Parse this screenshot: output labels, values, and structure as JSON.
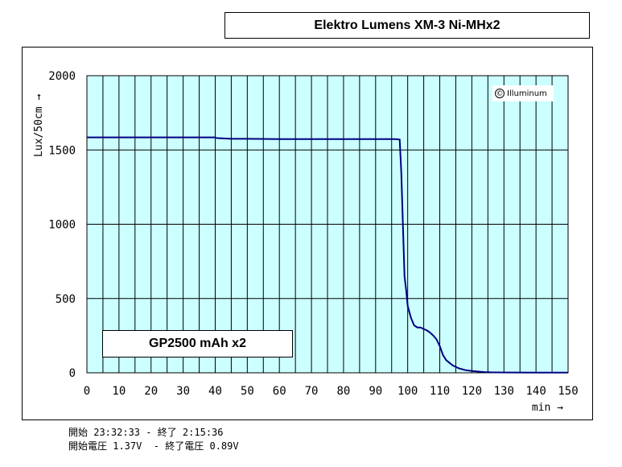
{
  "title": "Elektro Lumens XM-3 Ni-MHx2",
  "legend_label": "GP2500 mAh x2",
  "watermark": "Illuminum",
  "watermark_symbol": "©",
  "footer": {
    "line1": "開始 23:32:33 - 終了 2:15:36",
    "line2": "開始電圧 1.37V  - 終了電圧 0.89V"
  },
  "colors": {
    "plot_background": "#ccffff",
    "grid": "#000000",
    "series_line": "#000080"
  },
  "chart_data": {
    "type": "line",
    "title": "Elektro Lumens XM-3 Ni-MHx2",
    "xlabel": "min →",
    "ylabel": "Lux/50cm →",
    "xlim": [
      0,
      150
    ],
    "ylim": [
      0,
      2000
    ],
    "x_ticks": [
      "0",
      "10",
      "20",
      "30",
      "40",
      "50",
      "60",
      "70",
      "80",
      "90",
      "100",
      "110",
      "120",
      "130",
      "140",
      "150"
    ],
    "y_ticks": [
      "0",
      "500",
      "1000",
      "1500",
      "2000"
    ],
    "x_grid_step": 5,
    "y_grid_step": 500,
    "grid": true,
    "series": [
      {
        "name": "GP2500 mAh x2",
        "x": [
          0,
          10,
          20,
          30,
          40,
          40.5,
          45,
          50,
          60,
          70,
          80,
          90,
          96,
          97.5,
          98,
          98.5,
          99,
          99.5,
          100,
          101,
          102,
          103,
          104,
          105,
          106,
          107,
          108,
          109,
          110,
          111,
          112,
          114,
          116,
          118,
          120,
          122,
          124,
          126,
          130,
          140,
          150
        ],
        "y": [
          1585,
          1585,
          1585,
          1585,
          1585,
          1580,
          1575,
          1575,
          1573,
          1573,
          1573,
          1573,
          1573,
          1570,
          1350,
          1000,
          650,
          560,
          450,
          370,
          320,
          305,
          305,
          295,
          285,
          270,
          250,
          225,
          180,
          120,
          85,
          50,
          30,
          18,
          12,
          8,
          5,
          3,
          2,
          1,
          1
        ]
      }
    ]
  }
}
